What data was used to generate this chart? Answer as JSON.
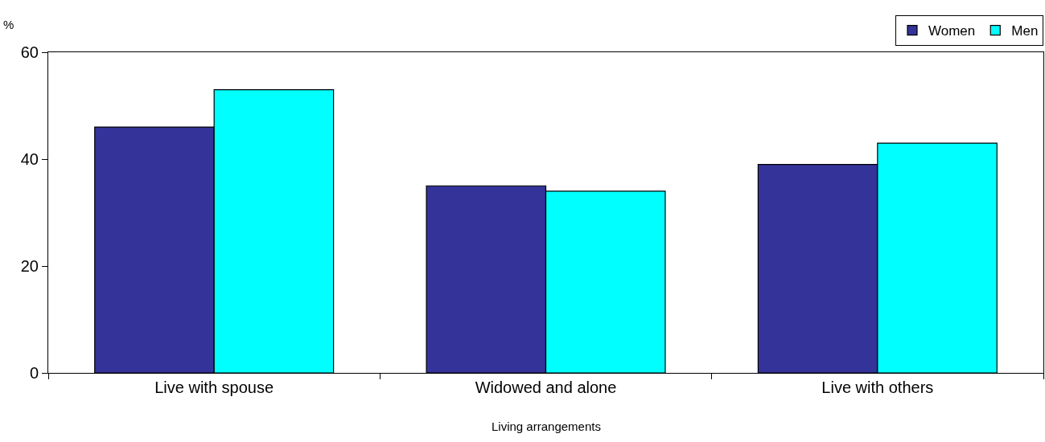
{
  "chart_data": {
    "type": "bar",
    "xlabel": "Living arrangements",
    "ylabel": "%",
    "categories": [
      "Live with spouse",
      "Widowed and alone",
      "Live with others"
    ],
    "series": [
      {
        "name": "Women",
        "color": "#333399",
        "values": [
          46,
          35,
          39
        ]
      },
      {
        "name": "Men",
        "color": "#00ffff",
        "values": [
          53,
          34,
          43
        ]
      }
    ],
    "ylim": [
      0,
      60
    ],
    "yticks": [
      0,
      20,
      40,
      60
    ],
    "grid": false,
    "legend": "top right"
  }
}
